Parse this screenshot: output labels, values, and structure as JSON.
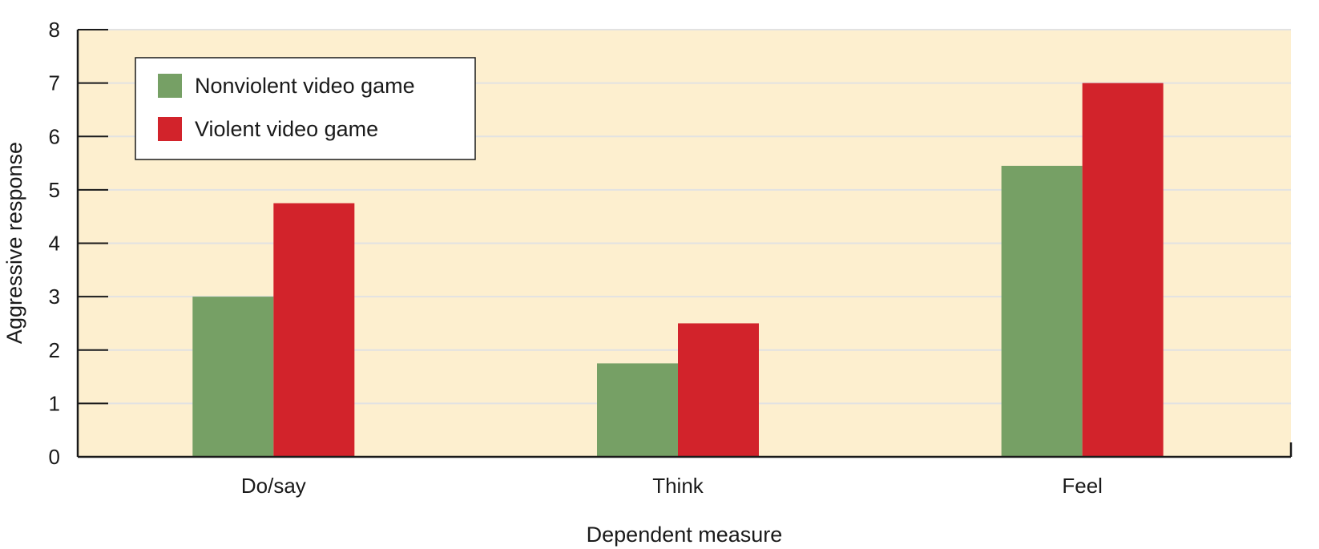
{
  "chart_data": {
    "type": "bar",
    "categories": [
      "Do/say",
      "Think",
      "Feel"
    ],
    "series": [
      {
        "name": "Nonviolent video game",
        "values": [
          3.0,
          1.75,
          5.45
        ],
        "color": "#76a065"
      },
      {
        "name": "Violent video game",
        "values": [
          4.75,
          2.5,
          7.0
        ],
        "color": "#d2232b"
      }
    ],
    "xlabel": "Dependent measure",
    "ylabel": "Aggressive response",
    "ylim": [
      0,
      8
    ],
    "yticks": [
      0,
      1,
      2,
      3,
      4,
      5,
      6,
      7,
      8
    ],
    "grid": true,
    "legend_position": "top-left",
    "plot_background": "#fdefcf",
    "gridline_color": "#e2e2e2"
  }
}
